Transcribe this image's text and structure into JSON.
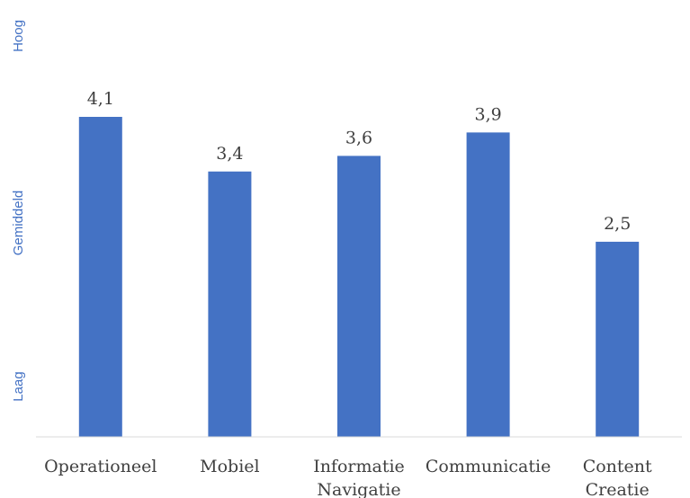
{
  "chart_data": {
    "type": "bar",
    "categories": [
      [
        "Operationeel"
      ],
      [
        "Mobiel"
      ],
      [
        "Informatie",
        "Navigatie"
      ],
      [
        "Communicatie"
      ],
      [
        "Content",
        "Creatie"
      ]
    ],
    "values": [
      4.1,
      3.4,
      3.6,
      3.9,
      2.5
    ],
    "data_labels": [
      "4,1",
      "3,4",
      "3,6",
      "3,9",
      "2,5"
    ],
    "y_axis_text_labels": {
      "top": "Hoog",
      "middle": "Gemiddeld",
      "bottom": "Laag"
    },
    "ylim": [
      0,
      5
    ],
    "grid": false,
    "legend": "none",
    "colors": {
      "bar": "#4472c4",
      "axis": "#d9d9d9",
      "text": "#404040",
      "ylabel": "#4472c4"
    }
  }
}
